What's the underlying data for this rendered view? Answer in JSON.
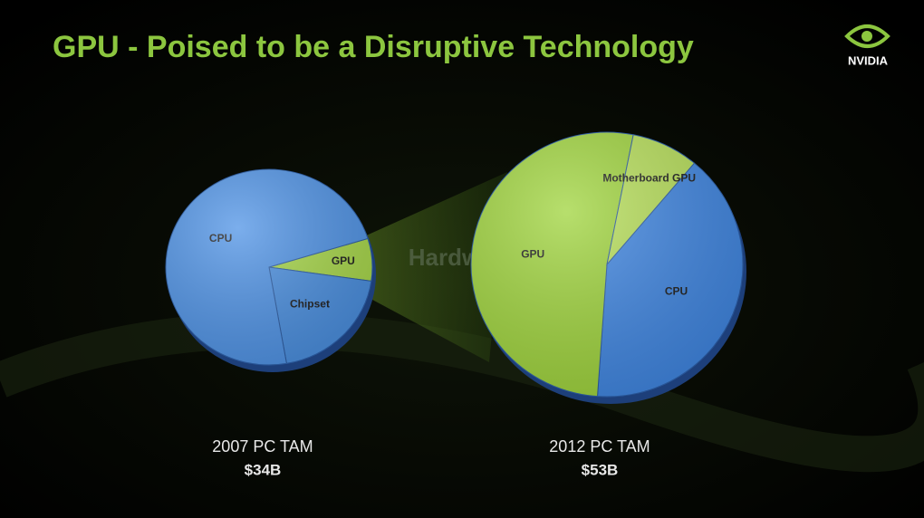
{
  "title": "GPU - Poised to be a Disruptive Technology",
  "logo": "NVIDIA",
  "watermark": "Hardware",
  "chart_data": [
    {
      "type": "pie",
      "title": "2007 PC TAM",
      "subtitle": "$34B",
      "categories": [
        "GPU",
        "Chipset",
        "CPU"
      ],
      "values": [
        7,
        20,
        73
      ],
      "colors": [
        "#a8d84a",
        "#4a8fe0",
        "#4f93e6"
      ]
    },
    {
      "type": "pie",
      "title": "2012 PC TAM",
      "subtitle": "$53B",
      "categories": [
        "CPU",
        "GPU",
        "Motherboard GPU"
      ],
      "values": [
        40,
        52,
        8
      ],
      "colors": [
        "#3f86e2",
        "#9fd43c",
        "#b8e05a"
      ]
    }
  ]
}
